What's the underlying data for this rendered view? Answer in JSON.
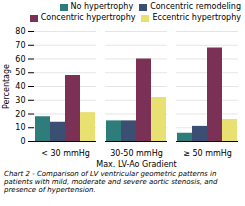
{
  "chart_data": {
    "type": "bar",
    "categories": [
      "< 30 mmHg",
      "30-50 mmHg",
      "≥ 50 mmHg"
    ],
    "series": [
      {
        "name": "No hypertrophy",
        "color": "#2e7d7a",
        "values": [
          18,
          15,
          6
        ]
      },
      {
        "name": "Concentric remodeling",
        "color": "#3a4f72",
        "values": [
          14,
          15,
          11
        ]
      },
      {
        "name": "Concentric hypertrophy",
        "color": "#7b3055",
        "values": [
          48,
          60,
          68
        ]
      },
      {
        "name": "Eccentric hypertrophy",
        "color": "#e8e070",
        "values": [
          21,
          32,
          16
        ]
      }
    ],
    "xlabel": "Max. LV-Ao Gradient",
    "ylabel": "Percentage",
    "ylim": [
      0,
      80
    ],
    "yticks": [
      0,
      10,
      20,
      30,
      40,
      50,
      60,
      70,
      80
    ],
    "grid": true,
    "legend": "upper right",
    "caption": "Chart 2 - Comparison of LV ventricular geometric patterns in patients with mild, moderate and severe aortic stenosis, and presence of hypertension."
  }
}
